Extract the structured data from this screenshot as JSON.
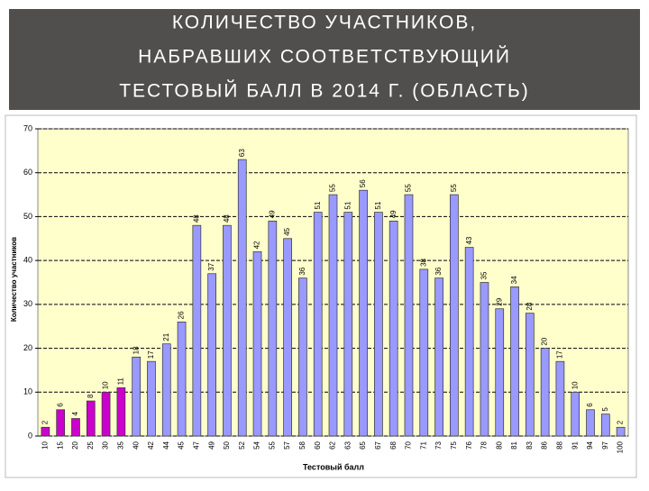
{
  "chart_data": {
    "type": "bar",
    "title": [
      "КОЛИЧЕСТВО УЧАСТНИКОВ,",
      "НАБРАВШИХ СООТВЕТСТВУЮЩИЙ",
      "ТЕСТОВЫЙ БАЛЛ В 2014 Г.  (ОБЛАСТЬ)"
    ],
    "xlabel": "Тестовый балл",
    "ylabel": "Количество участников",
    "categories": [
      "10",
      "15",
      "20",
      "25",
      "30",
      "35",
      "40",
      "42",
      "44",
      "45",
      "47",
      "49",
      "50",
      "52",
      "54",
      "55",
      "57",
      "58",
      "60",
      "62",
      "63",
      "65",
      "67",
      "68",
      "70",
      "71",
      "73",
      "75",
      "76",
      "78",
      "80",
      "81",
      "83",
      "86",
      "88",
      "91",
      "94",
      "97",
      "100"
    ],
    "values": [
      2,
      6,
      4,
      8,
      10,
      11,
      18,
      17,
      21,
      26,
      48,
      37,
      48,
      63,
      42,
      49,
      45,
      36,
      51,
      55,
      51,
      56,
      51,
      49,
      55,
      38,
      36,
      55,
      43,
      35,
      29,
      34,
      28,
      20,
      17,
      10,
      6,
      5,
      2
    ],
    "colors": [
      "#cc00cc",
      "#cc00cc",
      "#cc00cc",
      "#cc00cc",
      "#cc00cc",
      "#cc00cc",
      "#9999ff",
      "#9999ff",
      "#9999ff",
      "#9999ff",
      "#9999ff",
      "#9999ff",
      "#9999ff",
      "#9999ff",
      "#9999ff",
      "#9999ff",
      "#9999ff",
      "#9999ff",
      "#9999ff",
      "#9999ff",
      "#9999ff",
      "#9999ff",
      "#9999ff",
      "#9999ff",
      "#9999ff",
      "#9999ff",
      "#9999ff",
      "#9999ff",
      "#9999ff",
      "#9999ff",
      "#9999ff",
      "#9999ff",
      "#9999ff",
      "#9999ff",
      "#9999ff",
      "#9999ff",
      "#9999ff",
      "#9999ff",
      "#9999ff"
    ],
    "ylim": [
      0,
      70
    ],
    "yticks": [
      0,
      10,
      20,
      30,
      40,
      50,
      60,
      70
    ],
    "grid": true
  }
}
